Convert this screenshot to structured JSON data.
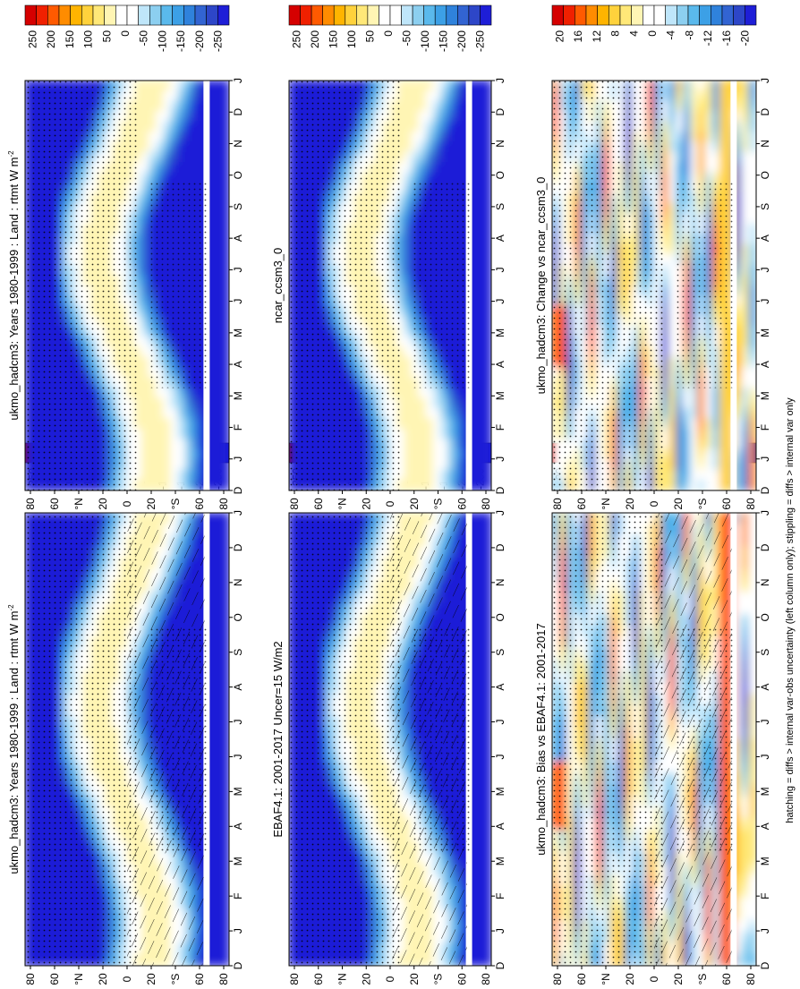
{
  "footnote": "hatching = diffs > internal var-obs uncertainty (left column only); stippling = diffs > internal var only",
  "chart_data": [
    {
      "type": "heatmap",
      "title": "ukmo_hadcm3: Years 1980-1999 : Land : rtmt W m",
      "title_superscript": "-2",
      "x_ticks": [
        "D",
        "J",
        "F",
        "M",
        "A",
        "M",
        "J",
        "J",
        "A",
        "S",
        "O",
        "N",
        "D",
        "J"
      ],
      "y_ticks": [
        "80",
        "60",
        "°N",
        "20",
        "0",
        "20",
        "°S",
        "60",
        "80"
      ],
      "y_range": [
        -90,
        90
      ],
      "colorbar": [
        "250",
        "200",
        "150",
        "100",
        "50",
        "0",
        "-50",
        "-100",
        "-150",
        "-200",
        "-250"
      ],
      "units": "W m-2",
      "scale": "full"
    },
    {
      "type": "heatmap",
      "title": "EBAF4.1: 2001-2017 Uncer=15 W/m2",
      "title_superscript": "",
      "x_ticks": [
        "D",
        "J",
        "F",
        "M",
        "A",
        "M",
        "J",
        "J",
        "A",
        "S",
        "O",
        "N",
        "D",
        "J"
      ],
      "y_ticks": [
        "80",
        "60",
        "°N",
        "20",
        "0",
        "20",
        "°S",
        "60",
        "80"
      ],
      "y_range": [
        -90,
        90
      ],
      "colorbar": [
        "250",
        "200",
        "150",
        "100",
        "50",
        "0",
        "-50",
        "-100",
        "-150",
        "-200",
        "-250"
      ],
      "units": "W m-2",
      "scale": "full"
    },
    {
      "type": "heatmap",
      "title": "ukmo_hadcm3: Bias vs EBAF4.1: 2001-2017",
      "title_superscript": "",
      "x_ticks": [
        "D",
        "J",
        "F",
        "M",
        "A",
        "M",
        "J",
        "J",
        "A",
        "S",
        "O",
        "N",
        "D",
        "J"
      ],
      "y_ticks": [
        "80",
        "60",
        "°N",
        "20",
        "0",
        "20",
        "°S",
        "60",
        "80"
      ],
      "y_range": [
        -90,
        90
      ],
      "colorbar": [
        "20",
        "16",
        "12",
        "8",
        "4",
        "0",
        "-4",
        "-8",
        "-12",
        "-16",
        "-20"
      ],
      "units": "W m-2",
      "scale": "diff"
    },
    {
      "type": "heatmap",
      "title": "ukmo_hadcm3: Years 1980-1999 : Land : rtmt W m",
      "title_superscript": "-2",
      "x_ticks": [
        "D",
        "J",
        "F",
        "M",
        "A",
        "M",
        "J",
        "J",
        "A",
        "S",
        "O",
        "N",
        "D",
        "J"
      ],
      "y_ticks": [
        "80",
        "60",
        "°N",
        "20",
        "0",
        "20",
        "°S",
        "60",
        "80"
      ],
      "y_range": [
        -90,
        90
      ],
      "colorbar": [
        "250",
        "200",
        "150",
        "100",
        "50",
        "0",
        "-50",
        "-100",
        "-150",
        "-200",
        "-250"
      ],
      "units": "W m-2",
      "scale": "full"
    },
    {
      "type": "heatmap",
      "title": "ncar_ccsm3_0",
      "title_superscript": "",
      "x_ticks": [
        "D",
        "J",
        "F",
        "M",
        "A",
        "M",
        "J",
        "J",
        "A",
        "S",
        "O",
        "N",
        "D",
        "J"
      ],
      "y_ticks": [
        "80",
        "60",
        "°N",
        "20",
        "0",
        "20",
        "°S",
        "60",
        "80"
      ],
      "y_range": [
        -90,
        90
      ],
      "colorbar": [
        "250",
        "200",
        "150",
        "100",
        "50",
        "0",
        "-50",
        "-100",
        "-150",
        "-200",
        "-250"
      ],
      "units": "W m-2",
      "scale": "full"
    },
    {
      "type": "heatmap",
      "title": "ukmo_hadcm3: Change vs ncar_ccsm3_0",
      "title_superscript": "",
      "x_ticks": [
        "D",
        "J",
        "F",
        "M",
        "A",
        "M",
        "J",
        "J",
        "A",
        "S",
        "O",
        "N",
        "D",
        "J"
      ],
      "y_ticks": [
        "80",
        "60",
        "°N",
        "20",
        "0",
        "20",
        "°S",
        "60",
        "80"
      ],
      "y_range": [
        -90,
        90
      ],
      "colorbar": [
        "20",
        "16",
        "12",
        "8",
        "4",
        "0",
        "-4",
        "-8",
        "-12",
        "-16",
        "-20"
      ],
      "units": "W m-2",
      "scale": "diff"
    }
  ],
  "colors": {
    "scale": [
      "#d50000",
      "#f02000",
      "#ff5a00",
      "#ff8c00",
      "#ffb400",
      "#ffd23c",
      "#ffe878",
      "#fff5b4",
      "#ffffff",
      "#ffffff",
      "#bfe6fa",
      "#8ccff0",
      "#5ab9ec",
      "#3ca0e6",
      "#2f82dc",
      "#3264d2",
      "#2d46c8",
      "#1e1ed7"
    ]
  }
}
